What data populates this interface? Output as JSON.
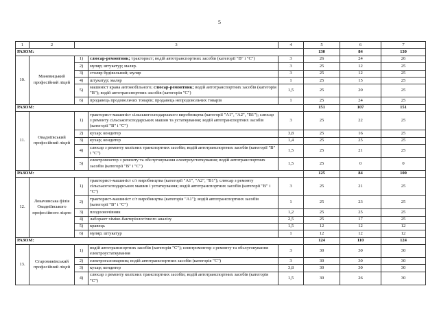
{
  "page_number": "5",
  "header": [
    "1",
    "2",
    "3",
    "4",
    "5",
    "6",
    "7"
  ],
  "razom_label": "РАЗОМ:",
  "blocks": [
    {
      "totals": [
        "130",
        "84",
        "130"
      ],
      "num": "10.",
      "name": "Маневицький професійний ліцей",
      "rows": [
        {
          "n": "1)",
          "text": [
            {
              "t": "слюсар-ремонтник;",
              "b": true
            },
            {
              "t": " тракторист; водій автотранспортних засобів (категорії \"В\" і \"С\")"
            }
          ],
          "c4": "3",
          "c5": "26",
          "c6": "24",
          "c7": "26"
        },
        {
          "n": "2)",
          "text": [
            {
              "t": "муляр; штукатур; маляр."
            }
          ],
          "c4": "3",
          "c5": "25",
          "c6": "12",
          "c7": "25"
        },
        {
          "n": "3)",
          "text": [
            {
              "t": "столяр будівельний; муляр"
            }
          ],
          "c4": "3",
          "c5": "25",
          "c6": "12",
          "c7": "25"
        },
        {
          "n": "4)",
          "text": [
            {
              "t": "штукатур; маляр"
            }
          ],
          "c4": "1",
          "c5": "25",
          "c6": "15",
          "c7": "25"
        },
        {
          "n": "5)",
          "text": [
            {
              "t": "машиніст крана автомобільного; "
            },
            {
              "t": "слюсар-ремонтник;",
              "b": true
            },
            {
              "t": " водій автотранспортних засобів (категорія \"В\"); водій автотранспортних засобів (категорія \"С\")"
            }
          ],
          "c4": "1,5",
          "c5": "25",
          "c6": "20",
          "c7": "25"
        },
        {
          "n": "6)",
          "text": [
            {
              "t": "продавець продовольчих товарів; продавець непродовольчих товарів"
            }
          ],
          "c4": "1",
          "c5": "25",
          "c6": "24",
          "c7": "25"
        }
      ]
    },
    {
      "totals": [
        "151",
        "107",
        "151"
      ],
      "num": "11.",
      "name": "Овадніївський професійний ліцей",
      "rows": [
        {
          "n": "1)",
          "text": [
            {
              "t": "тракторист-машиніст сільськогосподарського виробництва (категорії \"А1\", \"А2\", \"В1\"); слюсар з ремонту сільськогосподарських машин та устаткування; водій автотранспортних засобів (категорії \"В\" і \"С\")"
            }
          ],
          "c4": "3",
          "c5": "25",
          "c6": "22",
          "c7": "25"
        },
        {
          "n": "2)",
          "text": [
            {
              "t": "кухар; кондитер"
            }
          ],
          "c4": "3,8",
          "c5": "25",
          "c6": "16",
          "c7": "25"
        },
        {
          "n": "3)",
          "text": [
            {
              "t": "кухар; кондитер"
            }
          ],
          "c4": "1,4",
          "c5": "25",
          "c6": "25",
          "c7": "25"
        },
        {
          "n": "4)",
          "text": [
            {
              "t": "слюсар з ремонту колісних транспортних засобів; водій автотранспортних засобів (категорії \"В\" і \"С\")"
            }
          ],
          "c4": "1,5",
          "c5": "25",
          "c6": "21",
          "c7": "25"
        },
        {
          "n": "5)",
          "text": [
            {
              "t": "електромонтер з ремонту та обслуговування електроустаткування; водій автотранспортних засобів (категорії \"В\" і \"С\")"
            }
          ],
          "c4": "1,5",
          "c5": "25",
          "c6": "0",
          "c7": "0"
        }
      ]
    },
    {
      "totals": [
        "125",
        "84",
        "100"
      ],
      "num": "12.",
      "name": "Локачинська філія Овадніївського професійного ліцею",
      "rows": [
        {
          "n": "1)",
          "text": [
            {
              "t": "тракторист-машиніст с/г виробництва (категорії \"А1\", \"А2\", \"В1\"); слюсар з ремонту сільськогосподарських машин і устаткування; водій автотранспортних засобів (категорії \"В\" і \"С\")"
            }
          ],
          "c4": "3",
          "c5": "25",
          "c6": "21",
          "c7": "25"
        },
        {
          "n": "2)",
          "text": [
            {
              "t": "тракторист-машиніст с/г виробництва (категорія \"А1\"); водій автотранспортних засобів (категорії \"В\" і \"С\")"
            }
          ],
          "c4": "1",
          "c5": "25",
          "c6": "23",
          "c7": "25"
        },
        {
          "n": "3)",
          "text": [
            {
              "t": "плодоовочівник"
            }
          ],
          "c4": "1,2",
          "c5": "25",
          "c6": "25",
          "c7": "25"
        },
        {
          "n": "4)",
          "text": [
            {
              "t": "лаборант хіміко-бактеріологічного аналізу"
            }
          ],
          "c4": "2,5",
          "c5": "25",
          "c6": "17",
          "c7": "25"
        },
        {
          "n": "5)",
          "text": [
            {
              "t": "кравець"
            }
          ],
          "c4": "1,5",
          "c5": "12",
          "c6": "12",
          "c7": "12"
        },
        {
          "n": "6)",
          "text": [
            {
              "t": "муляр; штукатур"
            }
          ],
          "c4": "1",
          "c5": "12",
          "c6": "12",
          "c7": "12"
        }
      ]
    },
    {
      "totals": [
        "124",
        "110",
        "124"
      ],
      "num": "13.",
      "name": "Старовижівський професійний ліцей",
      "rows": [
        {
          "n": "1)",
          "text": [
            {
              "t": "водій автотранспортних засобів (категорія \"С\"); електромонтер з ремонту та обслуговування електроустаткування"
            }
          ],
          "c4": "3",
          "c5": "30",
          "c6": "30",
          "c7": "30"
        },
        {
          "n": "2)",
          "text": [
            {
              "t": "електрогазозварник; водій автотранспортних засобів (категорія \"С\")"
            }
          ],
          "c4": "3",
          "c5": "30",
          "c6": "30",
          "c7": "30"
        },
        {
          "n": "3)",
          "text": [
            {
              "t": "кухар; кондитер"
            }
          ],
          "c4": "3,8",
          "c5": "30",
          "c6": "30",
          "c7": "30"
        },
        {
          "n": "4)",
          "text": [
            {
              "t": "слюсар з ремонту колісних транспортних засобів; водій автотранспортних засобів (категорія \"С\")"
            }
          ],
          "c4": "1,5",
          "c5": "30",
          "c6": "26",
          "c7": "30"
        }
      ]
    }
  ]
}
